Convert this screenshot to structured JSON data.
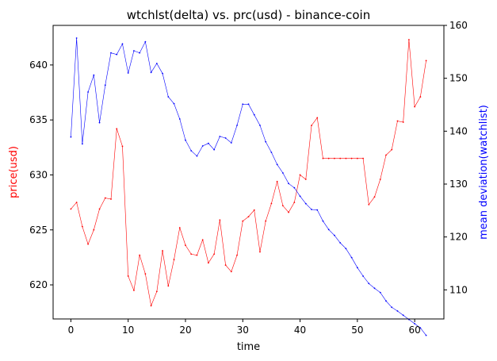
{
  "chart_data": {
    "type": "line",
    "title": "wtchlst(delta) vs. prc(usd) - binance-coin",
    "xlabel": "time",
    "ylabel_left": "price(usd)",
    "ylabel_right": "mean deviation(watchlist)",
    "xlim": [
      -3.1,
      65.1
    ],
    "ylim_left": [
      616.9,
      643.6
    ],
    "ylim_right": [
      104.5,
      160.0
    ],
    "x_ticks": [
      0,
      10,
      20,
      30,
      40,
      50,
      60
    ],
    "y_ticks_left": [
      620,
      625,
      630,
      635,
      640
    ],
    "y_ticks_right": [
      110,
      120,
      130,
      140,
      150,
      160
    ],
    "grid": false,
    "colors": {
      "price": "#ff0000",
      "watchlist": "#0000ff",
      "axes": "#000000"
    },
    "series": [
      {
        "axis": "left",
        "color": "#ff0000",
        "x": [
          0,
          1,
          2,
          3,
          4,
          5,
          6,
          7,
          8,
          9,
          10,
          11,
          12,
          13,
          14,
          15,
          16,
          17,
          18,
          19,
          20,
          21,
          22,
          23,
          24,
          25,
          26,
          27,
          28,
          29,
          30,
          31,
          32,
          33,
          34,
          35,
          36,
          37,
          38,
          39,
          40,
          41,
          42,
          43,
          44,
          45,
          46,
          47,
          48,
          49,
          50,
          51,
          52,
          53,
          54,
          55,
          56,
          57,
          58,
          59,
          60,
          61,
          62
        ],
        "values": [
          626.9,
          627.5,
          625.3,
          623.7,
          625.0,
          626.9,
          627.9,
          627.8,
          634.2,
          632.6,
          620.8,
          619.5,
          622.7,
          621.0,
          618.1,
          619.4,
          623.1,
          619.9,
          622.3,
          625.2,
          623.6,
          622.8,
          622.7,
          624.1,
          622.0,
          622.8,
          625.9,
          621.8,
          621.2,
          622.7,
          625.8,
          626.2,
          626.8,
          623.0,
          625.8,
          627.4,
          629.4,
          627.2,
          626.6,
          627.5,
          630.0,
          629.6,
          634.5,
          635.2,
          631.5,
          631.5,
          631.5,
          631.5,
          631.5,
          631.5,
          631.5,
          631.5,
          627.3,
          628.0,
          629.6,
          631.8,
          632.3,
          634.9,
          634.8,
          642.3,
          636.2,
          637.1,
          640.4
        ]
      },
      {
        "axis": "right",
        "color": "#0000ff",
        "x": [
          0,
          1,
          2,
          3,
          4,
          5,
          6,
          7,
          8,
          9,
          10,
          11,
          12,
          13,
          14,
          15,
          16,
          17,
          18,
          19,
          20,
          21,
          22,
          23,
          24,
          25,
          26,
          27,
          28,
          29,
          30,
          31,
          32,
          33,
          34,
          35,
          36,
          37,
          38,
          39,
          40,
          41,
          42,
          43,
          44,
          45,
          46,
          47,
          48,
          49,
          50,
          51,
          52,
          53,
          54,
          55,
          56,
          57,
          58,
          59,
          60,
          61,
          62
        ],
        "values": [
          138.9,
          157.6,
          137.6,
          147.4,
          150.6,
          141.6,
          148.7,
          154.8,
          154.5,
          156.5,
          151.0,
          155.2,
          154.8,
          156.9,
          151.1,
          152.8,
          150.9,
          146.5,
          145.2,
          142.3,
          138.3,
          136.3,
          135.3,
          137.2,
          137.7,
          136.5,
          139.0,
          138.7,
          137.8,
          141.1,
          145.1,
          145.1,
          143.1,
          141.1,
          138.0,
          136.0,
          133.7,
          132.1,
          130.1,
          129.3,
          127.7,
          126.3,
          125.2,
          125.1,
          123.0,
          121.4,
          120.3,
          118.9,
          117.8,
          116.1,
          114.2,
          112.6,
          111.2,
          110.3,
          109.5,
          107.9,
          106.7,
          106.0,
          105.2,
          104.4,
          103.6,
          102.8,
          101.4
        ]
      }
    ]
  }
}
